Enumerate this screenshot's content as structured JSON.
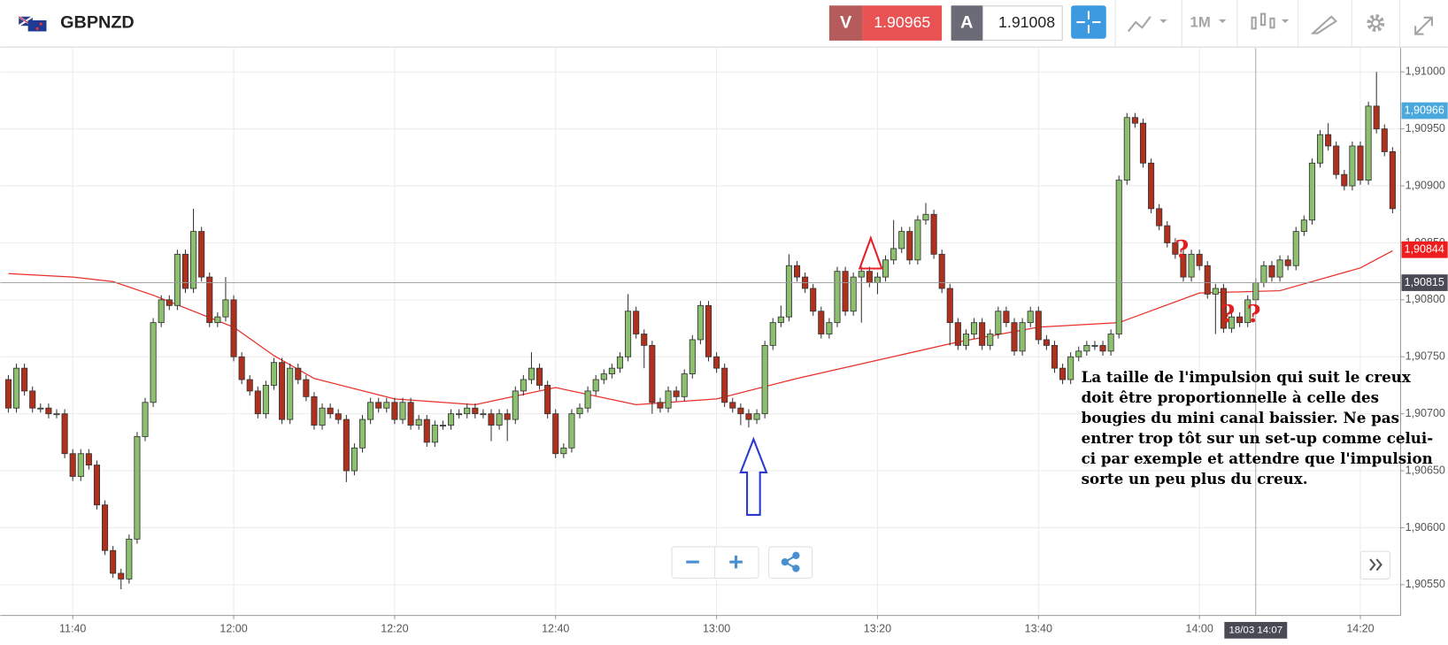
{
  "chart_data": {
    "type": "candlestick",
    "symbol": "GBPNZD",
    "toolbar": {
      "sell_label": "V",
      "sell_price": "1.90965",
      "buy_label": "A",
      "buy_price": "1.91008",
      "timeframe": "1M"
    },
    "up_color": "#8cbf6e",
    "down_color": "#b0301e",
    "ma_color": "#e8302a",
    "x": [
      "11:32",
      "11:33",
      "11:34",
      "11:35",
      "11:36",
      "11:37",
      "11:38",
      "11:39",
      "11:40",
      "11:41",
      "11:42",
      "11:43",
      "11:44",
      "11:45",
      "11:46",
      "11:47",
      "11:48",
      "11:49",
      "11:50",
      "11:51",
      "11:52",
      "11:53",
      "11:54",
      "11:55",
      "11:56",
      "11:57",
      "11:58",
      "11:59",
      "12:00",
      "12:01",
      "12:02",
      "12:03",
      "12:04",
      "12:05",
      "12:06",
      "12:07",
      "12:08",
      "12:09",
      "12:10",
      "12:11",
      "12:12",
      "12:13",
      "12:14",
      "12:15",
      "12:16",
      "12:17",
      "12:18",
      "12:19",
      "12:20",
      "12:21",
      "12:22",
      "12:23",
      "12:24",
      "12:25",
      "12:26",
      "12:27",
      "12:28",
      "12:29",
      "12:30",
      "12:31",
      "12:32",
      "12:33",
      "12:34",
      "12:35",
      "12:36",
      "12:37",
      "12:38",
      "12:39",
      "12:40",
      "12:41",
      "12:42",
      "12:43",
      "12:44",
      "12:45",
      "12:46",
      "12:47",
      "12:48",
      "12:49",
      "12:50",
      "12:51",
      "12:52",
      "12:53",
      "12:54",
      "12:55",
      "12:56",
      "12:57",
      "12:58",
      "12:59",
      "13:00",
      "13:01",
      "13:02",
      "13:03",
      "13:04",
      "13:05",
      "13:06",
      "13:07",
      "13:08",
      "13:09",
      "13:10",
      "13:11",
      "13:12",
      "13:13",
      "13:14",
      "13:15",
      "13:16",
      "13:17",
      "13:18",
      "13:19",
      "13:20",
      "13:21",
      "13:22",
      "13:23",
      "13:24",
      "13:25",
      "13:26",
      "13:27",
      "13:28",
      "13:29",
      "13:30",
      "13:31",
      "13:32",
      "13:33",
      "13:34",
      "13:35",
      "13:36",
      "13:37",
      "13:38",
      "13:39",
      "13:40",
      "13:41",
      "13:42",
      "13:43",
      "13:44",
      "13:45",
      "13:46",
      "13:47",
      "13:48",
      "13:49",
      "13:50",
      "13:51",
      "13:52",
      "13:53",
      "13:54",
      "13:55",
      "13:56",
      "13:57",
      "13:58",
      "13:59",
      "14:00",
      "14:01",
      "14:02",
      "14:03",
      "14:04",
      "14:05",
      "14:06",
      "14:07",
      "14:08",
      "14:09",
      "14:10",
      "14:11",
      "14:12",
      "14:13",
      "14:14",
      "14:15",
      "14:16",
      "14:17",
      "14:18",
      "14:19",
      "14:20",
      "14:21",
      "14:22",
      "14:23",
      "14:24"
    ],
    "ohlc": [
      [
        1.9073,
        1.90734,
        1.90701,
        1.90705
      ],
      [
        1.90705,
        1.90744,
        1.90701,
        1.9074
      ],
      [
        1.9074,
        1.90744,
        1.90716,
        1.9072
      ],
      [
        1.9072,
        1.90724,
        1.90701,
        1.90705
      ],
      [
        1.90705,
        1.90709,
        1.90701,
        1.90705
      ],
      [
        1.90705,
        1.90709,
        1.90696,
        1.907
      ],
      [
        1.907,
        1.90704,
        1.90696,
        1.907
      ],
      [
        1.907,
        1.90704,
        1.90661,
        1.90665
      ],
      [
        1.90665,
        1.90669,
        1.90641,
        1.90645
      ],
      [
        1.90645,
        1.90669,
        1.90641,
        1.90665
      ],
      [
        1.90665,
        1.90669,
        1.90651,
        1.90655
      ],
      [
        1.90655,
        1.90659,
        1.90616,
        1.9062
      ],
      [
        1.9062,
        1.90624,
        1.90576,
        1.9058
      ],
      [
        1.9058,
        1.90584,
        1.90556,
        1.9056
      ],
      [
        1.9056,
        1.90564,
        1.90546,
        1.90555
      ],
      [
        1.90555,
        1.90594,
        1.90551,
        1.9059
      ],
      [
        1.9059,
        1.90684,
        1.90586,
        1.9068
      ],
      [
        1.9068,
        1.90714,
        1.90676,
        1.9071
      ],
      [
        1.9071,
        1.90784,
        1.90706,
        1.9078
      ],
      [
        1.9078,
        1.90804,
        1.90776,
        1.908
      ],
      [
        1.908,
        1.90804,
        1.90791,
        1.90795
      ],
      [
        1.90795,
        1.90844,
        1.90791,
        1.9084
      ],
      [
        1.9084,
        1.90844,
        1.90806,
        1.9081
      ],
      [
        1.9081,
        1.9088,
        1.90806,
        1.9086
      ],
      [
        1.9086,
        1.90864,
        1.90816,
        1.9082
      ],
      [
        1.9082,
        1.90824,
        1.90776,
        1.9078
      ],
      [
        1.9078,
        1.90789,
        1.90776,
        1.90785
      ],
      [
        1.90785,
        1.9082,
        1.90781,
        1.908
      ],
      [
        1.908,
        1.90804,
        1.90746,
        1.9075
      ],
      [
        1.9075,
        1.90754,
        1.90726,
        1.9073
      ],
      [
        1.9073,
        1.90734,
        1.90716,
        1.9072
      ],
      [
        1.9072,
        1.90724,
        1.90696,
        1.907
      ],
      [
        1.907,
        1.90729,
        1.90696,
        1.90725
      ],
      [
        1.90725,
        1.90749,
        1.90721,
        1.90745
      ],
      [
        1.90745,
        1.90749,
        1.90691,
        1.90695
      ],
      [
        1.90695,
        1.90744,
        1.90691,
        1.9074
      ],
      [
        1.9074,
        1.90744,
        1.90726,
        1.9073
      ],
      [
        1.9073,
        1.90734,
        1.90711,
        1.90715
      ],
      [
        1.90715,
        1.90719,
        1.90686,
        1.9069
      ],
      [
        1.9069,
        1.90709,
        1.90686,
        1.90705
      ],
      [
        1.90705,
        1.90709,
        1.90696,
        1.907
      ],
      [
        1.907,
        1.90704,
        1.90691,
        1.90695
      ],
      [
        1.90695,
        1.90699,
        1.9064,
        1.9065
      ],
      [
        1.9065,
        1.90674,
        1.90646,
        1.9067
      ],
      [
        1.9067,
        1.90699,
        1.90666,
        1.90695
      ],
      [
        1.90695,
        1.90714,
        1.90691,
        1.9071
      ],
      [
        1.9071,
        1.90714,
        1.90701,
        1.90705
      ],
      [
        1.90705,
        1.90714,
        1.90701,
        1.9071
      ],
      [
        1.9071,
        1.90714,
        1.90691,
        1.90695
      ],
      [
        1.90695,
        1.90714,
        1.90691,
        1.9071
      ],
      [
        1.9071,
        1.90714,
        1.90686,
        1.9069
      ],
      [
        1.9069,
        1.90699,
        1.90686,
        1.90695
      ],
      [
        1.90695,
        1.90699,
        1.90671,
        1.90675
      ],
      [
        1.90675,
        1.90694,
        1.90671,
        1.9069
      ],
      [
        1.9069,
        1.90694,
        1.90686,
        1.9069
      ],
      [
        1.9069,
        1.90704,
        1.90686,
        1.907
      ],
      [
        1.907,
        1.90704,
        1.90696,
        1.907
      ],
      [
        1.907,
        1.90709,
        1.90696,
        1.90705
      ],
      [
        1.90705,
        1.90709,
        1.90696,
        1.907
      ],
      [
        1.907,
        1.90704,
        1.90696,
        1.907
      ],
      [
        1.907,
        1.90704,
        1.90676,
        1.9069
      ],
      [
        1.9069,
        1.90704,
        1.90686,
        1.907
      ],
      [
        1.907,
        1.90704,
        1.90676,
        1.90695
      ],
      [
        1.90695,
        1.90724,
        1.90691,
        1.9072
      ],
      [
        1.9072,
        1.90734,
        1.90716,
        1.9073
      ],
      [
        1.9073,
        1.90754,
        1.90726,
        1.9074
      ],
      [
        1.9074,
        1.90744,
        1.90721,
        1.90725
      ],
      [
        1.90725,
        1.90729,
        1.90696,
        1.907
      ],
      [
        1.907,
        1.90704,
        1.90661,
        1.90665
      ],
      [
        1.90665,
        1.90674,
        1.90661,
        1.9067
      ],
      [
        1.9067,
        1.90704,
        1.90666,
        1.907
      ],
      [
        1.907,
        1.90709,
        1.90696,
        1.90705
      ],
      [
        1.90705,
        1.90724,
        1.90701,
        1.9072
      ],
      [
        1.9072,
        1.90734,
        1.90716,
        1.9073
      ],
      [
        1.9073,
        1.90739,
        1.90726,
        1.90735
      ],
      [
        1.90735,
        1.90744,
        1.90731,
        1.9074
      ],
      [
        1.9074,
        1.90754,
        1.90736,
        1.9075
      ],
      [
        1.9075,
        1.90805,
        1.90746,
        1.9079
      ],
      [
        1.9079,
        1.90794,
        1.90766,
        1.9077
      ],
      [
        1.9077,
        1.90774,
        1.9074,
        1.9076
      ],
      [
        1.9076,
        1.90764,
        1.907,
        1.9071
      ],
      [
        1.9071,
        1.90714,
        1.90701,
        1.90705
      ],
      [
        1.90705,
        1.90724,
        1.90701,
        1.9072
      ],
      [
        1.9072,
        1.90724,
        1.90711,
        1.90715
      ],
      [
        1.90715,
        1.90739,
        1.90711,
        1.90735
      ],
      [
        1.90735,
        1.90769,
        1.90731,
        1.90765
      ],
      [
        1.90765,
        1.90799,
        1.90761,
        1.90795
      ],
      [
        1.90795,
        1.90799,
        1.90746,
        1.9075
      ],
      [
        1.9075,
        1.90754,
        1.90736,
        1.9074
      ],
      [
        1.9074,
        1.90744,
        1.90706,
        1.9071
      ],
      [
        1.9071,
        1.90714,
        1.90701,
        1.90705
      ],
      [
        1.90705,
        1.90709,
        1.9069,
        1.907
      ],
      [
        1.907,
        1.90704,
        1.90688,
        1.90695
      ],
      [
        1.90695,
        1.90704,
        1.90691,
        1.907
      ],
      [
        1.907,
        1.90764,
        1.90696,
        1.9076
      ],
      [
        1.9076,
        1.90784,
        1.90756,
        1.9078
      ],
      [
        1.9078,
        1.90795,
        1.90776,
        1.90785
      ],
      [
        1.90785,
        1.9084,
        1.90781,
        1.9083
      ],
      [
        1.9083,
        1.90834,
        1.90816,
        1.9082
      ],
      [
        1.9082,
        1.90824,
        1.90806,
        1.9081
      ],
      [
        1.9081,
        1.90814,
        1.90786,
        1.9079
      ],
      [
        1.9079,
        1.90794,
        1.90766,
        1.9077
      ],
      [
        1.9077,
        1.90784,
        1.90766,
        1.9078
      ],
      [
        1.9078,
        1.90829,
        1.90776,
        1.90825
      ],
      [
        1.90825,
        1.90829,
        1.90786,
        1.9079
      ],
      [
        1.9079,
        1.90824,
        1.90786,
        1.9082
      ],
      [
        1.9082,
        1.90829,
        1.9078,
        1.90825
      ],
      [
        1.90825,
        1.90829,
        1.90811,
        1.90815
      ],
      [
        1.90815,
        1.90824,
        1.90805,
        1.9082
      ],
      [
        1.9082,
        1.90839,
        1.90816,
        1.90835
      ],
      [
        1.90835,
        1.9087,
        1.90831,
        1.90845
      ],
      [
        1.90845,
        1.90864,
        1.90841,
        1.9086
      ],
      [
        1.9086,
        1.90864,
        1.90831,
        1.90835
      ],
      [
        1.90835,
        1.90874,
        1.90831,
        1.9087
      ],
      [
        1.9087,
        1.90885,
        1.90866,
        1.90875
      ],
      [
        1.90875,
        1.90879,
        1.90836,
        1.9084
      ],
      [
        1.9084,
        1.90844,
        1.90806,
        1.9081
      ],
      [
        1.9081,
        1.90814,
        1.9076,
        1.9078
      ],
      [
        1.9078,
        1.90784,
        1.90756,
        1.9076
      ],
      [
        1.9076,
        1.90774,
        1.90756,
        1.9077
      ],
      [
        1.9077,
        1.90784,
        1.90766,
        1.9078
      ],
      [
        1.9078,
        1.90784,
        1.90756,
        1.9076
      ],
      [
        1.9076,
        1.90774,
        1.90756,
        1.9077
      ],
      [
        1.9077,
        1.90794,
        1.90766,
        1.9079
      ],
      [
        1.9079,
        1.90794,
        1.90776,
        1.9078
      ],
      [
        1.9078,
        1.90784,
        1.90751,
        1.90755
      ],
      [
        1.90755,
        1.90784,
        1.90751,
        1.9078
      ],
      [
        1.9078,
        1.90794,
        1.90776,
        1.9079
      ],
      [
        1.9079,
        1.90794,
        1.90761,
        1.90765
      ],
      [
        1.90765,
        1.90769,
        1.90756,
        1.9076
      ],
      [
        1.9076,
        1.90764,
        1.90736,
        1.9074
      ],
      [
        1.9074,
        1.90744,
        1.90726,
        1.9073
      ],
      [
        1.9073,
        1.90754,
        1.90726,
        1.9075
      ],
      [
        1.9075,
        1.90759,
        1.90746,
        1.90755
      ],
      [
        1.90755,
        1.90764,
        1.90751,
        1.9076
      ],
      [
        1.9076,
        1.90764,
        1.90756,
        1.9076
      ],
      [
        1.9076,
        1.90764,
        1.90751,
        1.90755
      ],
      [
        1.90755,
        1.90774,
        1.90751,
        1.9077
      ],
      [
        1.9077,
        1.90909,
        1.90766,
        1.90905
      ],
      [
        1.90905,
        1.90964,
        1.90901,
        1.9096
      ],
      [
        1.9096,
        1.90964,
        1.90951,
        1.90955
      ],
      [
        1.90955,
        1.90959,
        1.90916,
        1.9092
      ],
      [
        1.9092,
        1.90924,
        1.90876,
        1.9088
      ],
      [
        1.9088,
        1.90884,
        1.90861,
        1.90865
      ],
      [
        1.90865,
        1.90869,
        1.90846,
        1.9085
      ],
      [
        1.9085,
        1.90854,
        1.90836,
        1.9084
      ],
      [
        1.9084,
        1.90844,
        1.90816,
        1.9082
      ],
      [
        1.9082,
        1.90844,
        1.90816,
        1.9084
      ],
      [
        1.9084,
        1.90844,
        1.90826,
        1.9083
      ],
      [
        1.9083,
        1.90834,
        1.90801,
        1.90805
      ],
      [
        1.90805,
        1.90814,
        1.9077,
        1.9081
      ],
      [
        1.9081,
        1.90814,
        1.90771,
        1.90775
      ],
      [
        1.90775,
        1.90789,
        1.90771,
        1.90785
      ],
      [
        1.90785,
        1.90789,
        1.90776,
        1.9078
      ],
      [
        1.9078,
        1.90804,
        1.90776,
        1.908
      ],
      [
        1.908,
        1.90819,
        1.90796,
        1.90815
      ],
      [
        1.90815,
        1.90834,
        1.90811,
        1.9083
      ],
      [
        1.9083,
        1.90834,
        1.90816,
        1.9082
      ],
      [
        1.9082,
        1.90839,
        1.90816,
        1.90835
      ],
      [
        1.90835,
        1.90839,
        1.90826,
        1.9083
      ],
      [
        1.9083,
        1.90864,
        1.90826,
        1.9086
      ],
      [
        1.9086,
        1.90874,
        1.90856,
        1.9087
      ],
      [
        1.9087,
        1.90924,
        1.90866,
        1.9092
      ],
      [
        1.9092,
        1.90949,
        1.90916,
        1.90945
      ],
      [
        1.90945,
        1.90955,
        1.90931,
        1.90935
      ],
      [
        1.90935,
        1.90939,
        1.90906,
        1.9091
      ],
      [
        1.9091,
        1.90914,
        1.90896,
        1.909
      ],
      [
        1.909,
        1.90939,
        1.90896,
        1.90935
      ],
      [
        1.90935,
        1.90939,
        1.90901,
        1.90905
      ],
      [
        1.90905,
        1.90974,
        1.90901,
        1.9097
      ],
      [
        1.9097,
        1.91,
        1.90946,
        1.9095
      ],
      [
        1.9095,
        1.90954,
        1.90926,
        1.9093
      ],
      [
        1.9093,
        1.90934,
        1.90876,
        1.9088
      ]
    ],
    "ma_x": [
      "11:32",
      "11:40",
      "11:45",
      "11:50",
      "12:00",
      "12:05",
      "12:10",
      "12:20",
      "12:30",
      "12:40",
      "12:50",
      "13:00",
      "13:10",
      "13:20",
      "13:30",
      "13:40",
      "13:50",
      "14:00",
      "14:10",
      "14:20",
      "14:24"
    ],
    "ma_values": [
      1.90823,
      1.9082,
      1.90816,
      1.90804,
      1.90776,
      1.90751,
      1.90731,
      1.90713,
      1.90708,
      1.90723,
      1.90708,
      1.90713,
      1.90731,
      1.90747,
      1.90763,
      1.90776,
      1.9078,
      1.90806,
      1.90808,
      1.90828,
      1.90843
    ],
    "xlim": [
      "11:31",
      "14:25"
    ],
    "ylim": [
      1.90523,
      1.91021
    ],
    "xticks": [
      "11:40",
      "12:00",
      "12:20",
      "12:40",
      "13:00",
      "13:20",
      "13:40",
      "14:00",
      "14:20"
    ],
    "yticks": [
      {
        "value": 1.9055,
        "label": "1,90550"
      },
      {
        "value": 1.906,
        "label": "1,90600"
      },
      {
        "value": 1.9065,
        "label": "1,90650"
      },
      {
        "value": 1.907,
        "label": "1,90700"
      },
      {
        "value": 1.9075,
        "label": "1,90750"
      },
      {
        "value": 1.908,
        "label": "1,90800"
      },
      {
        "value": 1.9085,
        "label": "1,90850"
      },
      {
        "value": 1.909,
        "label": "1,90900"
      },
      {
        "value": 1.9095,
        "label": "1,90950"
      },
      {
        "value": 1.91,
        "label": "1,91000"
      }
    ],
    "grid": true,
    "price_lines": [
      {
        "value": 1.90966,
        "label": "1,90966",
        "color": "#4aa8dc"
      },
      {
        "value": 1.90844,
        "label": "1,90844",
        "color": "#ee1c1c"
      },
      {
        "value": 1.90815,
        "label": "1,90815",
        "color": "#4a4a55"
      }
    ],
    "crosshair": {
      "x": "14:07",
      "label": "18/03 14:07"
    },
    "question_marks": [
      "?",
      "?",
      "?"
    ],
    "note": [
      "La taille de l'impulsion qui suit le creux",
      "doit être proportionnelle  à  celle des",
      "bougies du mini canal baissier. Ne pas",
      "entrer trop tôt sur un set-up comme celui-",
      "ci par exemple et attendre que l'impulsion",
      "sorte un peu plus du creux."
    ]
  }
}
